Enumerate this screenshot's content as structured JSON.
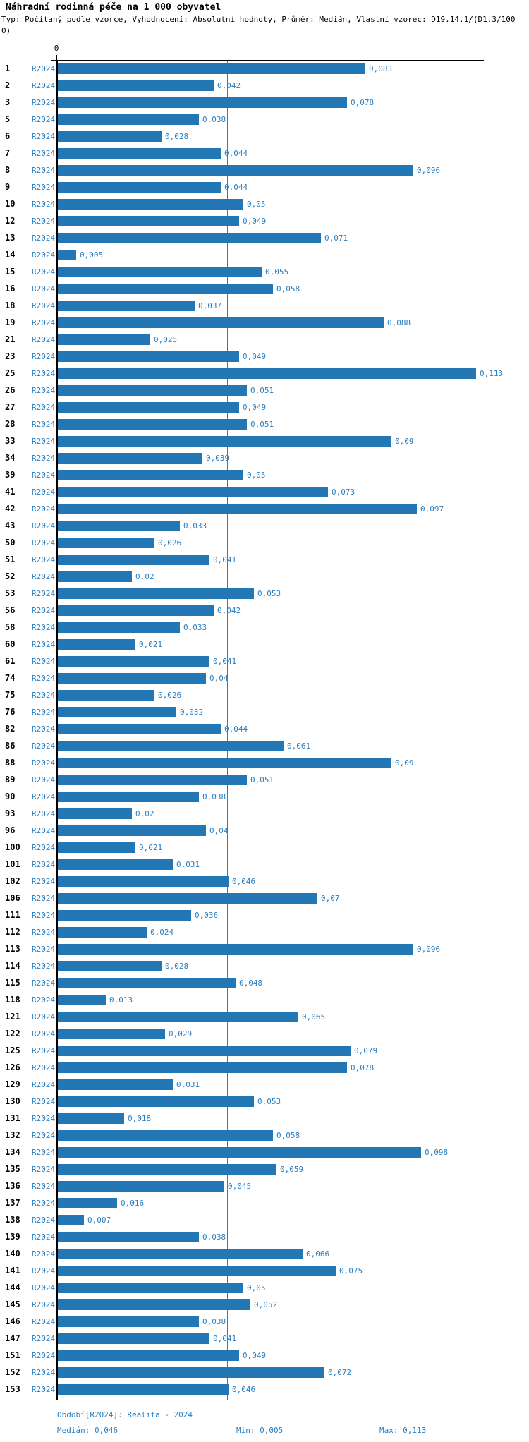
{
  "title": "Náhradní rodinná péče na 1 000 obyvatel",
  "subtitle_line1": "Typ: Počítaný podle vzorce, Vyhodnocení: Absolutní hodnoty, Průměr: Medián, Vlastní vzorec: D19.14.1/(D1.3/100",
  "subtitle_line2": "0)",
  "axis_zero_label": "0",
  "footer": {
    "period": "Období[R2024]: Realita - 2024",
    "median": "Medián: 0,046",
    "min": "Min: 0,005",
    "max": "Max: 0,113"
  },
  "colors": {
    "bar": "#2277B4",
    "blue_text": "#2B7FC2",
    "axis": "#000000"
  },
  "chart_data": {
    "type": "bar",
    "orientation": "horizontal",
    "title": "Náhradní rodinná péče na 1 000 obyvatel",
    "xlabel": "",
    "ylabel": "",
    "xlim": [
      0,
      0.113
    ],
    "grid": false,
    "legend_position": "none",
    "median": 0.046,
    "min": 0.005,
    "max": 0.113,
    "series_label": "R2024",
    "categories": [
      "1",
      "2",
      "3",
      "5",
      "6",
      "7",
      "8",
      "9",
      "10",
      "12",
      "13",
      "14",
      "15",
      "16",
      "18",
      "19",
      "21",
      "23",
      "25",
      "26",
      "27",
      "28",
      "33",
      "34",
      "39",
      "41",
      "42",
      "43",
      "50",
      "51",
      "52",
      "53",
      "56",
      "58",
      "60",
      "61",
      "74",
      "75",
      "76",
      "82",
      "86",
      "88",
      "89",
      "90",
      "93",
      "96",
      "100",
      "101",
      "102",
      "106",
      "111",
      "112",
      "113",
      "114",
      "115",
      "118",
      "121",
      "122",
      "125",
      "126",
      "129",
      "130",
      "131",
      "132",
      "134",
      "135",
      "136",
      "137",
      "138",
      "139",
      "140",
      "141",
      "144",
      "145",
      "146",
      "147",
      "151",
      "152",
      "153"
    ],
    "series": [
      {
        "name": "R2024",
        "values": [
          0.083,
          0.042,
          0.078,
          0.038,
          0.028,
          0.044,
          0.096,
          0.044,
          0.05,
          0.049,
          0.071,
          0.005,
          0.055,
          0.058,
          0.037,
          0.088,
          0.025,
          0.049,
          0.113,
          0.051,
          0.049,
          0.051,
          0.09,
          0.039,
          0.05,
          0.073,
          0.097,
          0.033,
          0.026,
          0.041,
          0.02,
          0.053,
          0.042,
          0.033,
          0.021,
          0.041,
          0.04,
          0.026,
          0.032,
          0.044,
          0.061,
          0.09,
          0.051,
          0.038,
          0.02,
          0.04,
          0.021,
          0.031,
          0.046,
          0.07,
          0.036,
          0.024,
          0.096,
          0.028,
          0.048,
          0.013,
          0.065,
          0.029,
          0.079,
          0.078,
          0.031,
          0.053,
          0.018,
          0.058,
          0.098,
          0.059,
          0.045,
          0.016,
          0.007,
          0.038,
          0.066,
          0.075,
          0.05,
          0.052,
          0.038,
          0.041,
          0.049,
          0.072,
          0.046
        ]
      }
    ],
    "value_labels": [
      "0,083",
      "0,042",
      "0,078",
      "0,038",
      "0,028",
      "0,044",
      "0,096",
      "0,044",
      "0,05",
      "0,049",
      "0,071",
      "0,005",
      "0,055",
      "0,058",
      "0,037",
      "0,088",
      "0,025",
      "0,049",
      "0,113",
      "0,051",
      "0,049",
      "0,051",
      "0,09",
      "0,039",
      "0,05",
      "0,073",
      "0,097",
      "0,033",
      "0,026",
      "0,041",
      "0,02",
      "0,053",
      "0,042",
      "0,033",
      "0,021",
      "0,041",
      "0,04",
      "0,026",
      "0,032",
      "0,044",
      "0,061",
      "0,09",
      "0,051",
      "0,038",
      "0,02",
      "0,04",
      "0,021",
      "0,031",
      "0,046",
      "0,07",
      "0,036",
      "0,024",
      "0,096",
      "0,028",
      "0,048",
      "0,013",
      "0,065",
      "0,029",
      "0,079",
      "0,078",
      "0,031",
      "0,053",
      "0,018",
      "0,058",
      "0,098",
      "0,059",
      "0,045",
      "0,016",
      "0,007",
      "0,038",
      "0,066",
      "0,075",
      "0,05",
      "0,052",
      "0,038",
      "0,041",
      "0,049",
      "0,072",
      "0,046"
    ]
  }
}
